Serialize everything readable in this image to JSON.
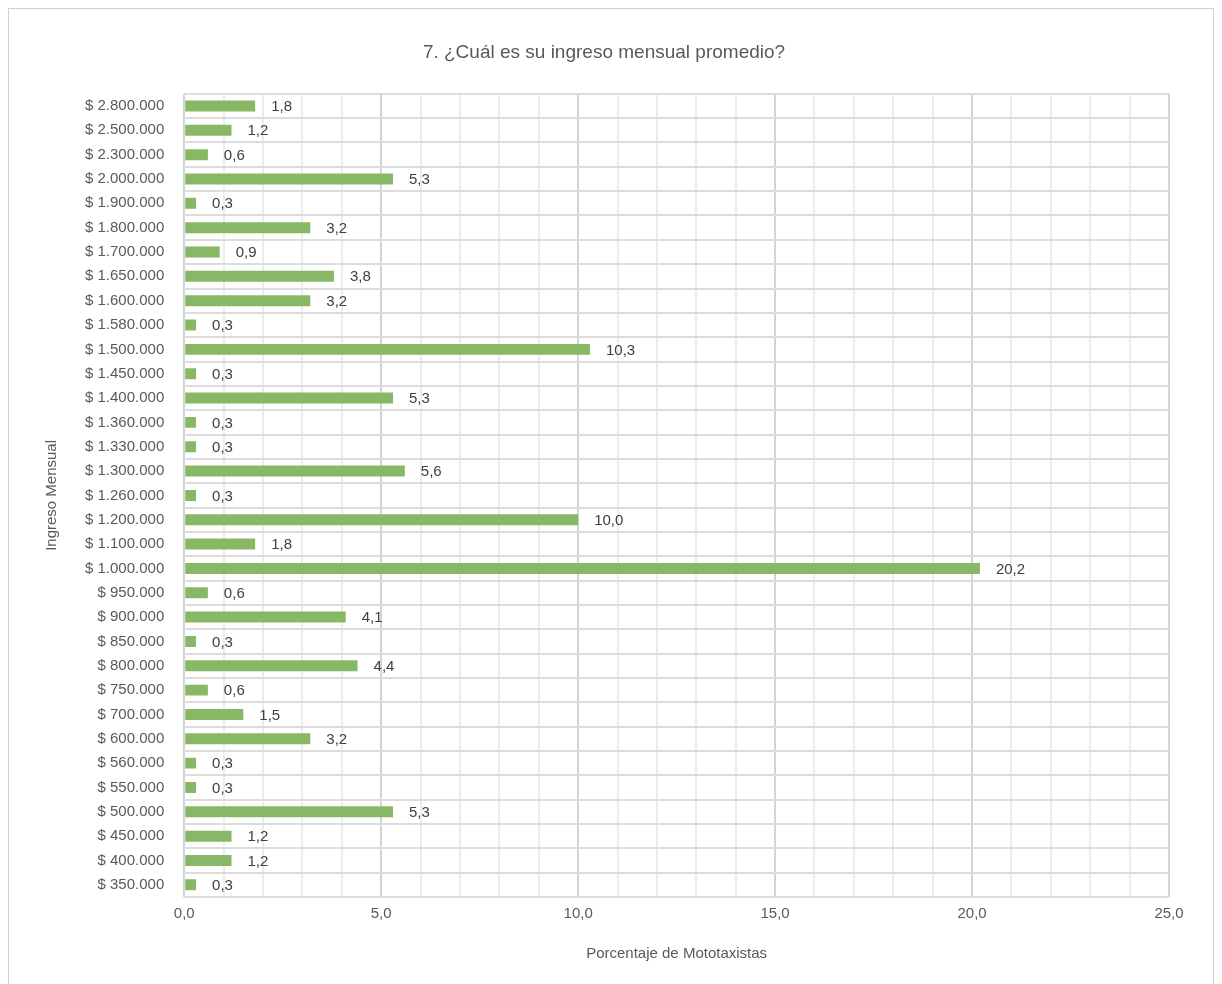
{
  "chart_data": {
    "type": "bar",
    "orientation": "horizontal",
    "title": "7. ¿Cuál es su ingreso mensual promedio?",
    "xlabel": "Porcentaje de Mototaxistas",
    "ylabel": "Ingreso Mensual",
    "categories": [
      "$ 2.800.000",
      "$ 2.500.000",
      "$ 2.300.000",
      "$ 2.000.000",
      "$ 1.900.000",
      "$ 1.800.000",
      "$ 1.700.000",
      "$ 1.650.000",
      "$ 1.600.000",
      "$ 1.580.000",
      "$ 1.500.000",
      "$ 1.450.000",
      "$ 1.400.000",
      "$ 1.360.000",
      "$ 1.330.000",
      "$ 1.300.000",
      "$ 1.260.000",
      "$ 1.200.000",
      "$ 1.100.000",
      "$ 1.000.000",
      "$ 950.000",
      "$ 900.000",
      "$ 850.000",
      "$ 800.000",
      "$ 750.000",
      "$ 700.000",
      "$ 600.000",
      "$ 560.000",
      "$ 550.000",
      "$ 500.000",
      "$ 450.000",
      "$ 400.000",
      "$ 350.000"
    ],
    "values": [
      1.8,
      1.2,
      0.6,
      5.3,
      0.3,
      3.2,
      0.9,
      3.8,
      3.2,
      0.3,
      10.3,
      0.3,
      5.3,
      0.3,
      0.3,
      5.6,
      0.3,
      10.0,
      1.8,
      20.2,
      0.6,
      4.1,
      0.3,
      4.4,
      0.6,
      1.5,
      3.2,
      0.3,
      0.3,
      5.3,
      1.2,
      1.2,
      0.3
    ],
    "value_labels": [
      "1,8",
      "1,2",
      "0,6",
      "5,3",
      "0,3",
      "3,2",
      "0,9",
      "3,8",
      "3,2",
      "0,3",
      "10,3",
      "0,3",
      "5,3",
      "0,3",
      "0,3",
      "5,6",
      "0,3",
      "10,0",
      "1,8",
      "20,2",
      "0,6",
      "4,1",
      "0,3",
      "4,4",
      "0,6",
      "1,5",
      "3,2",
      "0,3",
      "0,3",
      "5,3",
      "1,2",
      "1,2",
      "0,3"
    ],
    "color": "#88b866",
    "xlim": [
      0,
      25
    ],
    "xticks": [
      {
        "value": 0,
        "label": "0,0"
      },
      {
        "value": 1,
        "label": null
      },
      {
        "value": 2,
        "label": null
      },
      {
        "value": 3,
        "label": null
      },
      {
        "value": 4,
        "label": null
      },
      {
        "value": 5,
        "label": "5,0"
      },
      {
        "value": 6,
        "label": null
      },
      {
        "value": 7,
        "label": null
      },
      {
        "value": 8,
        "label": null
      },
      {
        "value": 9,
        "label": null
      },
      {
        "value": 10,
        "label": "10,0"
      },
      {
        "value": 11,
        "label": null
      },
      {
        "value": 12,
        "label": null
      },
      {
        "value": 13,
        "label": null
      },
      {
        "value": 14,
        "label": null
      },
      {
        "value": 15,
        "label": "15,0"
      },
      {
        "value": 16,
        "label": null
      },
      {
        "value": 17,
        "label": null
      },
      {
        "value": 18,
        "label": null
      },
      {
        "value": 19,
        "label": null
      },
      {
        "value": 20,
        "label": "20,0"
      },
      {
        "value": 21,
        "label": null
      },
      {
        "value": 22,
        "label": null
      },
      {
        "value": 23,
        "label": null
      },
      {
        "value": 24,
        "label": null
      },
      {
        "value": 25,
        "label": "25,0"
      }
    ],
    "grid": true,
    "legend": false
  }
}
